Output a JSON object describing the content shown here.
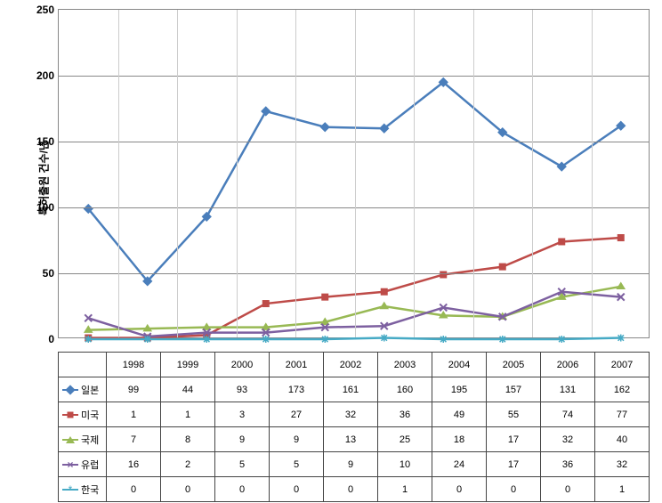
{
  "chart": {
    "type": "line",
    "ylabel": "특허출원 건수/년",
    "ylim": [
      0,
      250
    ],
    "ytick_step": 50,
    "yticks": [
      0,
      50,
      100,
      150,
      200,
      250
    ],
    "categories": [
      "1998",
      "1999",
      "2000",
      "2001",
      "2002",
      "2003",
      "2004",
      "2005",
      "2006",
      "2007"
    ],
    "background_color": "#ffffff",
    "grid_color": "#888888",
    "label_fontsize": 12,
    "tick_fontsize": 12,
    "line_width": 2.5,
    "marker_size": 8,
    "series": [
      {
        "name": "일본",
        "label": "일본",
        "color": "#4a7ebb",
        "marker": "diamond",
        "values": [
          99,
          44,
          93,
          173,
          161,
          160,
          195,
          157,
          131,
          162
        ]
      },
      {
        "name": "미국",
        "label": "미국",
        "color": "#be4b48",
        "marker": "square",
        "values": [
          1,
          1,
          3,
          27,
          32,
          36,
          49,
          55,
          74,
          77
        ]
      },
      {
        "name": "국제",
        "label": "국제",
        "color": "#98b954",
        "marker": "triangle",
        "values": [
          7,
          8,
          9,
          9,
          13,
          25,
          18,
          17,
          32,
          40
        ]
      },
      {
        "name": "유럽",
        "label": "유럽",
        "color": "#7d60a0",
        "marker": "xmark",
        "values": [
          16,
          2,
          5,
          5,
          9,
          10,
          24,
          17,
          36,
          32
        ]
      },
      {
        "name": "한국",
        "label": "한국",
        "color": "#46aac5",
        "marker": "star",
        "values": [
          0,
          0,
          0,
          0,
          0,
          1,
          0,
          0,
          0,
          1
        ]
      }
    ]
  }
}
